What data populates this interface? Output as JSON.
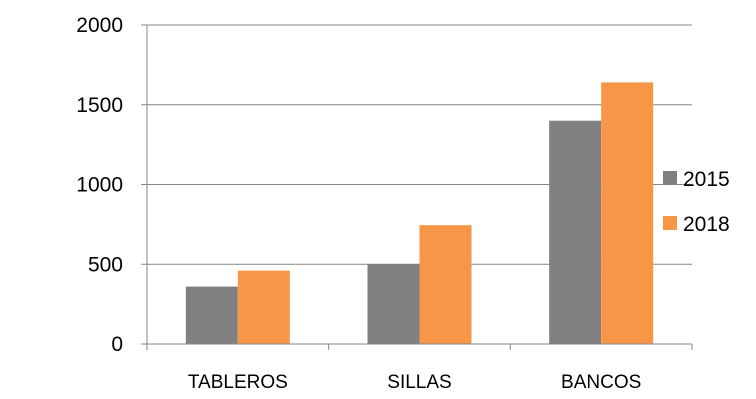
{
  "chart_data": {
    "type": "bar",
    "categories": [
      "TABLEROS",
      "SILLAS",
      "BANCOS"
    ],
    "series": [
      {
        "name": "2015",
        "values": [
          360,
          500,
          1400
        ],
        "color": "#808080"
      },
      {
        "name": "2018",
        "values": [
          460,
          745,
          1640
        ],
        "color": "#F79646"
      }
    ],
    "ylim": [
      0,
      2000
    ],
    "yticks": [
      0,
      500,
      1000,
      1500,
      2000
    ],
    "grid": true,
    "legend_position": "right",
    "title": "",
    "xlabel": "",
    "ylabel": ""
  }
}
